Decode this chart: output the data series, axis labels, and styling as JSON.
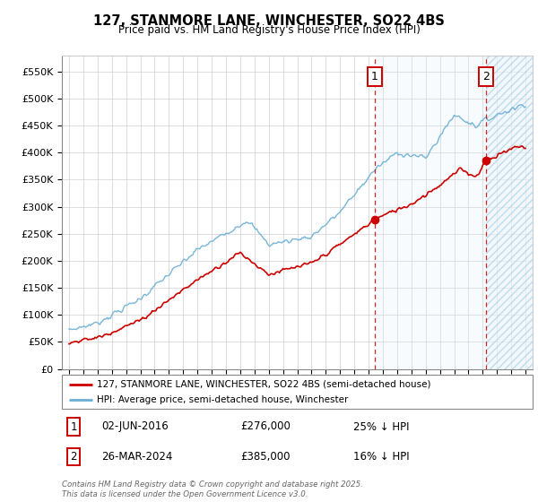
{
  "title": "127, STANMORE LANE, WINCHESTER, SO22 4BS",
  "subtitle": "Price paid vs. HM Land Registry's House Price Index (HPI)",
  "legend_line1": "127, STANMORE LANE, WINCHESTER, SO22 4BS (semi-detached house)",
  "legend_line2": "HPI: Average price, semi-detached house, Winchester",
  "annotation1_date": "02-JUN-2016",
  "annotation1_price": "£276,000",
  "annotation1_hpi": "25% ↓ HPI",
  "annotation2_date": "26-MAR-2024",
  "annotation2_price": "£385,000",
  "annotation2_hpi": "16% ↓ HPI",
  "footer": "Contains HM Land Registry data © Crown copyright and database right 2025.\nThis data is licensed under the Open Government Licence v3.0.",
  "hpi_color": "#6aaed6",
  "price_color": "#cc0000",
  "vline_color": "#cc0000",
  "shade_color": "#ddeef8",
  "hatch_color": "#c8dff0",
  "ylim": [
    0,
    580000
  ],
  "yticks": [
    0,
    50000,
    100000,
    150000,
    200000,
    250000,
    300000,
    350000,
    400000,
    450000,
    500000,
    550000
  ],
  "ytick_labels": [
    "£0",
    "£50K",
    "£100K",
    "£150K",
    "£200K",
    "£250K",
    "£300K",
    "£350K",
    "£400K",
    "£450K",
    "£500K",
    "£550K"
  ],
  "purchase1_year": 2016.42,
  "purchase2_year": 2024.23,
  "purchase1_price": 276000,
  "purchase2_price": 385000
}
